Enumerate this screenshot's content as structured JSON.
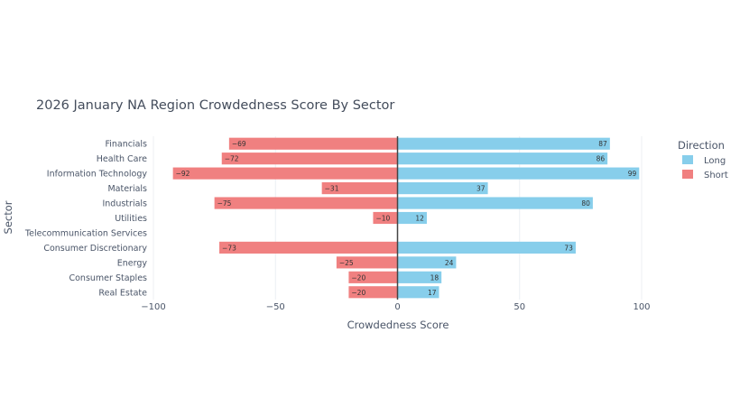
{
  "chart_data": {
    "type": "bar",
    "orientation": "horizontal",
    "barmode": "relative",
    "title": "2026 January NA Region Crowdedness Score By Sector",
    "xlabel": "Crowdedness Score",
    "ylabel": "Sector",
    "xlim": [
      -100,
      100
    ],
    "xticks": [
      -100,
      -50,
      0,
      50,
      100
    ],
    "xtick_labels": [
      "−100",
      "−50",
      "0",
      "50",
      "100"
    ],
    "grid": true,
    "legend": {
      "title": "Direction",
      "placement": "right"
    },
    "categories": [
      "Financials",
      "Health Care",
      "Information Technology",
      "Materials",
      "Industrials",
      "Utilities",
      "Telecommunication Services",
      "Consumer Discretionary",
      "Energy",
      "Consumer Staples",
      "Real Estate"
    ],
    "series": [
      {
        "name": "Long",
        "color": "#87CEEB",
        "values": [
          87,
          86,
          99,
          37,
          80,
          12,
          0,
          73,
          24,
          18,
          17
        ],
        "labels": [
          "87",
          "86",
          "99",
          "37",
          "80",
          "12",
          "",
          "73",
          "24",
          "18",
          "17"
        ]
      },
      {
        "name": "Short",
        "color": "#F08080",
        "values": [
          -69,
          -72,
          -92,
          -31,
          -75,
          -10,
          0,
          -73,
          -25,
          -20,
          -20
        ],
        "labels": [
          "−69",
          "−72",
          "−92",
          "−31",
          "−75",
          "−10",
          "",
          "−73",
          "−25",
          "−20",
          "−20"
        ]
      }
    ]
  }
}
